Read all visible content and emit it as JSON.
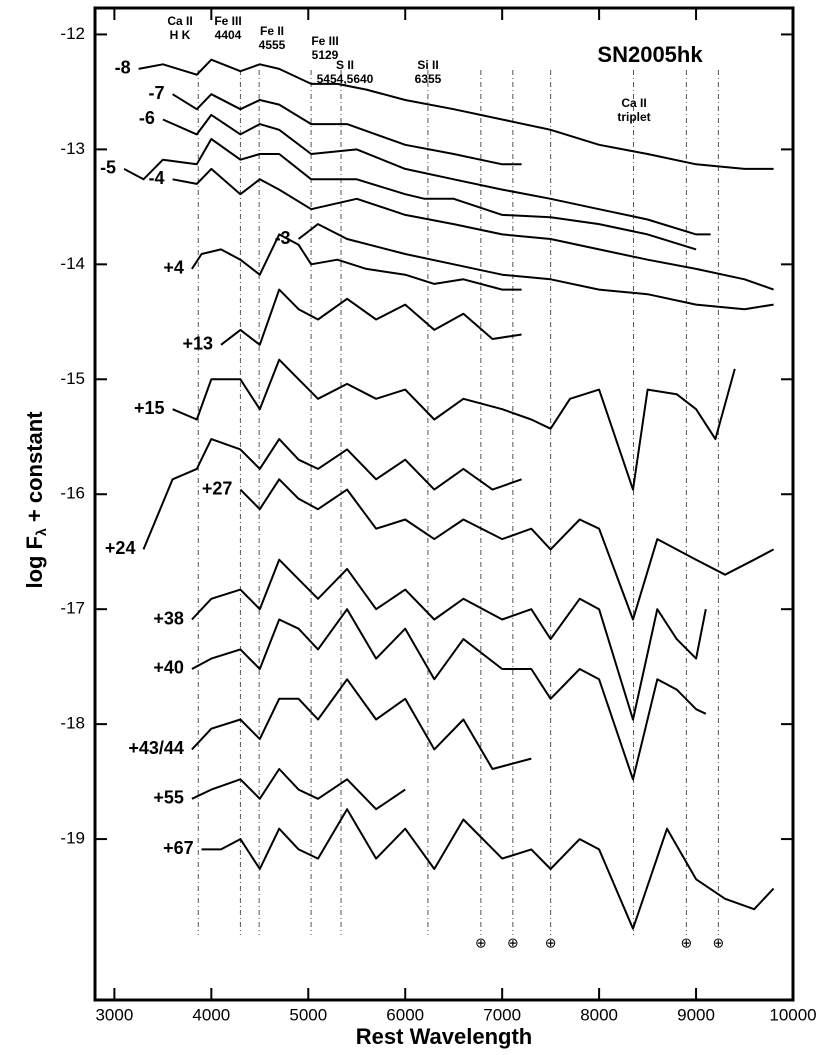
{
  "chart_data": {
    "type": "line",
    "title": "SN2005hk",
    "xlabel": "Rest Wavelength",
    "ylabel": "log F",
    "ylabel_sub": "λ",
    "ylabel_rest": " + constant",
    "xlim": [
      2800,
      10000
    ],
    "ylim": [
      -20.4,
      -11.77
    ],
    "xticks": [
      3000,
      4000,
      5000,
      6000,
      7000,
      8000,
      9000,
      10000
    ],
    "yticks": [
      -12,
      -13,
      -14,
      -15,
      -16,
      -17,
      -18,
      -19
    ],
    "color": "#000000",
    "line_ids": [
      [
        "Ca II",
        "H K"
      ],
      [
        "Fe III",
        "4404"
      ],
      [
        "Fe II",
        "4555"
      ],
      [
        "Fe III",
        "5129"
      ],
      [
        "S II",
        "5454,5640"
      ],
      [
        "Si II",
        "6355"
      ],
      [
        "Ca II",
        "triplet"
      ]
    ],
    "reference_lines": [
      3865,
      4300,
      4493,
      5029,
      5338,
      6234,
      6780,
      7110,
      7500,
      8355,
      8900,
      9230
    ],
    "telluric": [
      6780,
      7110,
      7500,
      8900,
      9230
    ],
    "telluric_symbol": "⊕",
    "series": [
      {
        "name": "-8",
        "x": [
          3250,
          3500,
          3850,
          4000,
          4300,
          4500,
          4700,
          5030,
          5300,
          5600,
          6000,
          6500,
          7000,
          7500,
          8000,
          8500,
          9000,
          9500,
          9800
        ],
        "values": [
          -12.3,
          -12.26,
          -12.35,
          -12.22,
          -12.32,
          -12.26,
          -12.3,
          -12.43,
          -12.43,
          -12.48,
          -12.57,
          -12.65,
          -12.74,
          -12.83,
          -12.96,
          -13.04,
          -13.13,
          -13.17,
          -13.17
        ]
      },
      {
        "name": "-7",
        "x": [
          3600,
          3850,
          4000,
          4300,
          4500,
          4700,
          5030,
          5400,
          6000,
          6500,
          7000,
          7200
        ],
        "values": [
          -12.52,
          -12.65,
          -12.52,
          -12.65,
          -12.57,
          -12.61,
          -12.78,
          -12.78,
          -12.96,
          -13.04,
          -13.13,
          -13.13
        ]
      },
      {
        "name": "-6",
        "x": [
          3500,
          3850,
          4000,
          4300,
          4500,
          4700,
          5030,
          5500,
          6000,
          6500,
          7000,
          7500,
          8000,
          8500,
          9000,
          9150
        ],
        "values": [
          -12.74,
          -12.87,
          -12.7,
          -12.87,
          -12.78,
          -12.83,
          -13.04,
          -13.0,
          -13.17,
          -13.26,
          -13.35,
          -13.43,
          -13.52,
          -13.61,
          -13.74,
          -13.74
        ]
      },
      {
        "name": "-5",
        "x": [
          3100,
          3300,
          3500,
          3850,
          4000,
          4300,
          4500,
          4700,
          5030,
          5500,
          6000,
          6200,
          6500,
          7000,
          7500,
          8000,
          8500,
          9000
        ],
        "values": [
          -13.17,
          -13.26,
          -13.09,
          -13.13,
          -12.91,
          -13.09,
          -13.04,
          -13.04,
          -13.26,
          -13.26,
          -13.39,
          -13.43,
          -13.43,
          -13.57,
          -13.59,
          -13.65,
          -13.74,
          -13.87
        ]
      },
      {
        "name": "-4",
        "x": [
          3600,
          3850,
          4000,
          4300,
          4500,
          4700,
          5030,
          5500,
          6000,
          6500,
          7000,
          7500,
          8000,
          8500,
          9000,
          9500,
          9800
        ],
        "values": [
          -13.26,
          -13.3,
          -13.17,
          -13.39,
          -13.26,
          -13.35,
          -13.52,
          -13.43,
          -13.57,
          -13.65,
          -13.74,
          -13.78,
          -13.87,
          -13.96,
          -14.04,
          -14.13,
          -14.22
        ]
      },
      {
        "name": "-3",
        "x": [
          4900,
          5100,
          5400,
          6000,
          6500,
          7000,
          7500,
          8000,
          8500,
          9000,
          9500,
          9800
        ],
        "values": [
          -13.78,
          -13.65,
          -13.78,
          -13.91,
          -14.0,
          -14.09,
          -14.13,
          -14.22,
          -14.26,
          -14.35,
          -14.39,
          -14.35
        ]
      },
      {
        "name": "+4",
        "x": [
          3800,
          3900,
          4100,
          4300,
          4500,
          4700,
          4900,
          5030,
          5300,
          5600,
          6000,
          6300,
          6600,
          7000,
          7200
        ],
        "values": [
          -14.04,
          -13.91,
          -13.87,
          -13.96,
          -14.09,
          -13.74,
          -13.83,
          -14.0,
          -13.96,
          -14.04,
          -14.09,
          -14.17,
          -14.13,
          -14.22,
          -14.22
        ]
      },
      {
        "name": "+13",
        "x": [
          4100,
          4300,
          4500,
          4700,
          4900,
          5100,
          5400,
          5700,
          6000,
          6300,
          6600,
          6900,
          7200
        ],
        "values": [
          -14.7,
          -14.57,
          -14.7,
          -14.22,
          -14.39,
          -14.48,
          -14.3,
          -14.48,
          -14.35,
          -14.57,
          -14.43,
          -14.65,
          -14.61
        ]
      },
      {
        "name": "+15",
        "x": [
          3600,
          3850,
          4000,
          4300,
          4500,
          4700,
          4900,
          5100,
          5400,
          5700,
          6000,
          6300,
          6600,
          7000,
          7300,
          7500,
          7700,
          8000,
          8350,
          8500,
          8800,
          9000,
          9200,
          9400
        ],
        "values": [
          -15.26,
          -15.35,
          -15.0,
          -15.0,
          -15.26,
          -14.83,
          -15.0,
          -15.17,
          -15.04,
          -15.17,
          -15.09,
          -15.35,
          -15.17,
          -15.26,
          -15.35,
          -15.43,
          -15.17,
          -15.09,
          -15.96,
          -15.09,
          -15.13,
          -15.26,
          -15.52,
          -14.91
        ]
      },
      {
        "name": "+24",
        "x": [
          3300,
          3600,
          3850,
          4000,
          4300,
          4500,
          4700,
          4900,
          5100,
          5400,
          5700,
          6000,
          6300,
          6600,
          6900,
          7200
        ],
        "values": [
          -16.48,
          -15.87,
          -15.78,
          -15.52,
          -15.61,
          -15.78,
          -15.52,
          -15.7,
          -15.78,
          -15.61,
          -15.87,
          -15.7,
          -15.96,
          -15.78,
          -15.96,
          -15.87
        ]
      },
      {
        "name": "+27",
        "x": [
          4300,
          4500,
          4700,
          4900,
          5100,
          5400,
          5700,
          6000,
          6300,
          6600,
          7000,
          7300,
          7500,
          7800,
          8000,
          8350,
          8600,
          9000,
          9300,
          9600,
          9800
        ],
        "values": [
          -15.96,
          -16.13,
          -15.87,
          -16.04,
          -16.13,
          -15.96,
          -16.3,
          -16.22,
          -16.39,
          -16.22,
          -16.39,
          -16.3,
          -16.48,
          -16.22,
          -16.3,
          -17.09,
          -16.39,
          -16.57,
          -16.7,
          -16.57,
          -16.48
        ]
      },
      {
        "name": "+38",
        "x": [
          3800,
          4000,
          4300,
          4500,
          4700,
          4900,
          5100,
          5400,
          5700,
          6000,
          6300,
          6600,
          7000,
          7300,
          7500,
          7800,
          8000,
          8350,
          8600,
          8800,
          9000,
          9100
        ],
        "values": [
          -17.09,
          -16.91,
          -16.83,
          -17.0,
          -16.57,
          -16.74,
          -16.91,
          -16.65,
          -17.0,
          -16.83,
          -17.09,
          -16.91,
          -17.09,
          -17.0,
          -17.26,
          -16.91,
          -17.0,
          -17.96,
          -17.0,
          -17.26,
          -17.43,
          -17.0
        ]
      },
      {
        "name": "+40",
        "x": [
          3800,
          4000,
          4300,
          4500,
          4700,
          4900,
          5100,
          5400,
          5700,
          6000,
          6300,
          6600,
          7000,
          7300,
          7500,
          7800,
          8000,
          8350,
          8600,
          8800,
          9000,
          9100
        ],
        "values": [
          -17.52,
          -17.43,
          -17.35,
          -17.52,
          -17.09,
          -17.17,
          -17.35,
          -17.0,
          -17.43,
          -17.17,
          -17.61,
          -17.26,
          -17.52,
          -17.52,
          -17.78,
          -17.52,
          -17.61,
          -18.48,
          -17.61,
          -17.7,
          -17.87,
          -17.91
        ]
      },
      {
        "name": "+43/44",
        "x": [
          3800,
          4000,
          4300,
          4500,
          4700,
          4900,
          5100,
          5400,
          5700,
          6000,
          6300,
          6600,
          6900,
          7300
        ],
        "values": [
          -18.22,
          -18.04,
          -17.96,
          -18.13,
          -17.78,
          -17.78,
          -17.96,
          -17.61,
          -17.96,
          -17.78,
          -18.22,
          -17.96,
          -18.39,
          -18.3
        ]
      },
      {
        "name": "+55",
        "x": [
          3800,
          4000,
          4300,
          4500,
          4700,
          4900,
          5100,
          5400,
          5700,
          6000
        ],
        "values": [
          -18.65,
          -18.57,
          -18.48,
          -18.65,
          -18.39,
          -18.57,
          -18.65,
          -18.48,
          -18.74,
          -18.57
        ]
      },
      {
        "name": "+67",
        "x": [
          3900,
          4100,
          4300,
          4500,
          4700,
          4900,
          5100,
          5400,
          5700,
          6000,
          6300,
          6600,
          7000,
          7300,
          7500,
          7800,
          8000,
          8350,
          8700,
          9000,
          9300,
          9600,
          9800
        ],
        "values": [
          -19.09,
          -19.09,
          -19.0,
          -19.26,
          -18.91,
          -19.09,
          -19.17,
          -18.74,
          -19.17,
          -18.91,
          -19.26,
          -18.83,
          -19.17,
          -19.09,
          -19.26,
          -19.0,
          -19.09,
          -19.78,
          -18.91,
          -19.35,
          -19.52,
          -19.61,
          -19.43
        ]
      }
    ]
  }
}
